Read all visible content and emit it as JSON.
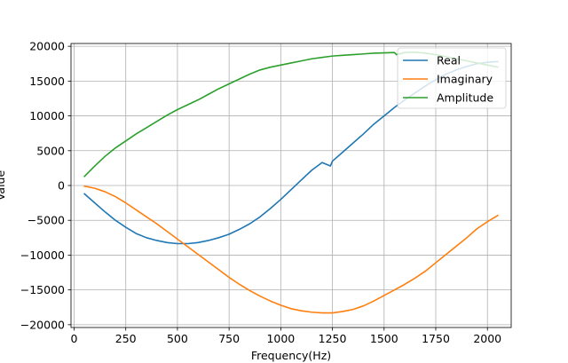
{
  "chart_data": {
    "type": "line",
    "xlabel": "Frequency(Hz)",
    "ylabel": "Value",
    "xlim": [
      -15,
      2115
    ],
    "ylim": [
      -20400,
      20400
    ],
    "xticks": [
      0,
      250,
      500,
      750,
      1000,
      1250,
      1500,
      1750,
      2000
    ],
    "yticks": [
      -20000,
      -15000,
      -10000,
      -5000,
      0,
      5000,
      10000,
      15000,
      20000
    ],
    "grid": true,
    "legend_position": "top-right",
    "series": [
      {
        "name": "Real",
        "color": "#1f77b4",
        "x": [
          50,
          100,
          150,
          200,
          250,
          300,
          350,
          400,
          450,
          500,
          550,
          600,
          650,
          700,
          750,
          800,
          850,
          900,
          950,
          1000,
          1050,
          1100,
          1150,
          1200,
          1240,
          1250,
          1300,
          1350,
          1400,
          1450,
          1500,
          1550,
          1600,
          1650,
          1700,
          1750,
          1800,
          1850,
          1900,
          1950,
          2000,
          2050
        ],
        "y": [
          -1200,
          -2500,
          -3800,
          -5000,
          -6000,
          -6900,
          -7500,
          -7900,
          -8200,
          -8350,
          -8350,
          -8200,
          -7900,
          -7500,
          -7000,
          -6300,
          -5500,
          -4500,
          -3300,
          -2000,
          -600,
          800,
          2200,
          3300,
          2800,
          3500,
          4800,
          6100,
          7400,
          8800,
          10000,
          11200,
          12300,
          13300,
          14300,
          15200,
          16000,
          16600,
          17100,
          17500,
          17700,
          17800
        ]
      },
      {
        "name": "Imaginary",
        "color": "#ff7f0e",
        "x": [
          50,
          100,
          150,
          200,
          250,
          300,
          350,
          400,
          450,
          500,
          550,
          600,
          650,
          700,
          750,
          800,
          850,
          900,
          950,
          1000,
          1050,
          1100,
          1150,
          1200,
          1250,
          1300,
          1350,
          1400,
          1450,
          1500,
          1550,
          1600,
          1650,
          1700,
          1750,
          1800,
          1850,
          1900,
          1950,
          2000,
          2050
        ],
        "y": [
          -100,
          -400,
          -900,
          -1600,
          -2500,
          -3500,
          -4500,
          -5500,
          -6600,
          -7700,
          -8800,
          -9900,
          -11000,
          -12100,
          -13200,
          -14200,
          -15100,
          -15900,
          -16600,
          -17200,
          -17700,
          -18000,
          -18200,
          -18300,
          -18300,
          -18100,
          -17800,
          -17300,
          -16600,
          -15800,
          -15000,
          -14200,
          -13300,
          -12300,
          -11100,
          -9900,
          -8700,
          -7500,
          -6200,
          -5200,
          -4300
        ]
      },
      {
        "name": "Amplitude",
        "color": "#2ca02c",
        "x": [
          50,
          100,
          150,
          200,
          250,
          300,
          350,
          400,
          450,
          500,
          550,
          600,
          650,
          700,
          750,
          800,
          850,
          900,
          950,
          1000,
          1050,
          1100,
          1150,
          1200,
          1250,
          1300,
          1350,
          1400,
          1450,
          1500,
          1550,
          1560,
          1600,
          1650,
          1700,
          1750,
          1800,
          1850,
          1900,
          1950,
          2000,
          2050
        ],
        "y": [
          1300,
          2800,
          4200,
          5400,
          6400,
          7400,
          8300,
          9200,
          10100,
          10900,
          11600,
          12300,
          13100,
          13900,
          14600,
          15300,
          16000,
          16600,
          17000,
          17300,
          17600,
          17900,
          18200,
          18400,
          18600,
          18700,
          18800,
          18900,
          19000,
          19050,
          19100,
          18800,
          19100,
          19150,
          19000,
          18800,
          18500,
          18200,
          17900,
          17600,
          17300,
          17000
        ]
      }
    ]
  }
}
